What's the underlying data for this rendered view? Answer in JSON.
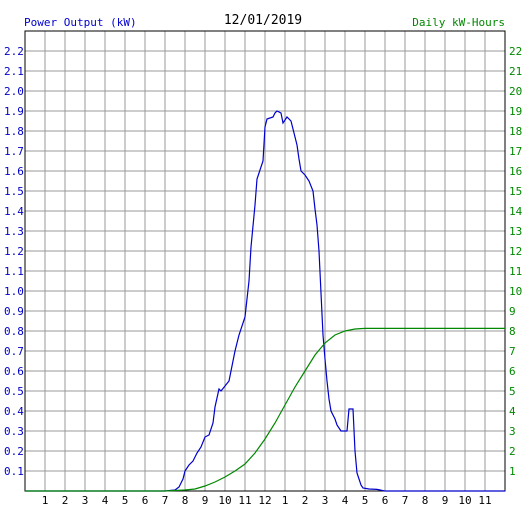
{
  "chart_data": {
    "type": "line",
    "date_title": "12/01/2019",
    "left_axis_label": "Power Output (kW)",
    "right_axis_label": "Daily kW-Hours",
    "x_ticks": [
      "1",
      "2",
      "3",
      "4",
      "5",
      "6",
      "7",
      "8",
      "9",
      "10",
      "11",
      "12",
      "1",
      "2",
      "3",
      "4",
      "5",
      "6",
      "7",
      "8",
      "9",
      "10",
      "11"
    ],
    "x_range": [
      0,
      24
    ],
    "y_left_range": [
      0,
      2.3
    ],
    "y_left_ticks": [
      "0.1",
      "0.2",
      "0.3",
      "0.4",
      "0.5",
      "0.6",
      "0.7",
      "0.8",
      "0.9",
      "1.0",
      "1.1",
      "1.2",
      "1.3",
      "1.4",
      "1.5",
      "1.6",
      "1.7",
      "1.8",
      "1.9",
      "2.0",
      "2.1",
      "2.2"
    ],
    "y_right_range": [
      0,
      23
    ],
    "y_right_ticks": [
      "1",
      "2",
      "3",
      "4",
      "5",
      "6",
      "7",
      "8",
      "9",
      "10",
      "11",
      "12",
      "13",
      "14",
      "15",
      "16",
      "17",
      "18",
      "19",
      "20",
      "21",
      "22"
    ],
    "grid": true,
    "series": [
      {
        "axis": "left",
        "color": "#0000cc",
        "points": [
          [
            0,
            0
          ],
          [
            6.5,
            0
          ],
          [
            7.0,
            0
          ],
          [
            7.5,
            0.005
          ],
          [
            7.7,
            0.02
          ],
          [
            7.9,
            0.06
          ],
          [
            8.0,
            0.1
          ],
          [
            8.2,
            0.13
          ],
          [
            8.4,
            0.15
          ],
          [
            8.6,
            0.19
          ],
          [
            8.8,
            0.22
          ],
          [
            9.0,
            0.27
          ],
          [
            9.2,
            0.28
          ],
          [
            9.4,
            0.34
          ],
          [
            9.5,
            0.42
          ],
          [
            9.7,
            0.51
          ],
          [
            9.8,
            0.5
          ],
          [
            10.2,
            0.55
          ],
          [
            10.3,
            0.6
          ],
          [
            10.5,
            0.7
          ],
          [
            10.7,
            0.78
          ],
          [
            11.0,
            0.87
          ],
          [
            11.2,
            1.05
          ],
          [
            11.3,
            1.22
          ],
          [
            11.5,
            1.43
          ],
          [
            11.6,
            1.56
          ],
          [
            11.9,
            1.65
          ],
          [
            12.0,
            1.82
          ],
          [
            12.1,
            1.86
          ],
          [
            12.4,
            1.87
          ],
          [
            12.5,
            1.89
          ],
          [
            12.6,
            1.9
          ],
          [
            12.8,
            1.89
          ],
          [
            12.9,
            1.84
          ],
          [
            13.1,
            1.87
          ],
          [
            13.3,
            1.85
          ],
          [
            13.4,
            1.81
          ],
          [
            13.6,
            1.73
          ],
          [
            13.7,
            1.66
          ],
          [
            13.8,
            1.6
          ],
          [
            14.0,
            1.58
          ],
          [
            14.2,
            1.55
          ],
          [
            14.4,
            1.5
          ],
          [
            14.5,
            1.41
          ],
          [
            14.6,
            1.33
          ],
          [
            14.7,
            1.2
          ],
          [
            14.9,
            0.78
          ],
          [
            15.0,
            0.66
          ],
          [
            15.1,
            0.55
          ],
          [
            15.2,
            0.46
          ],
          [
            15.3,
            0.4
          ],
          [
            15.5,
            0.36
          ],
          [
            15.6,
            0.33
          ],
          [
            15.8,
            0.3
          ],
          [
            16.1,
            0.3
          ],
          [
            16.2,
            0.41
          ],
          [
            16.4,
            0.41
          ],
          [
            16.5,
            0.2
          ],
          [
            16.6,
            0.09
          ],
          [
            16.8,
            0.03
          ],
          [
            16.9,
            0.015
          ],
          [
            17.2,
            0.01
          ],
          [
            17.6,
            0.008
          ],
          [
            18.0,
            0.0
          ],
          [
            24,
            0
          ]
        ]
      },
      {
        "axis": "right",
        "color": "#008800",
        "points": [
          [
            0,
            0
          ],
          [
            7.0,
            0
          ],
          [
            8.0,
            0.05
          ],
          [
            8.5,
            0.1
          ],
          [
            9.0,
            0.25
          ],
          [
            9.5,
            0.45
          ],
          [
            10.0,
            0.7
          ],
          [
            10.5,
            1.0
          ],
          [
            11.0,
            1.35
          ],
          [
            11.5,
            1.9
          ],
          [
            12.0,
            2.6
          ],
          [
            12.5,
            3.4
          ],
          [
            13.0,
            4.3
          ],
          [
            13.5,
            5.2
          ],
          [
            14.0,
            6.0
          ],
          [
            14.5,
            6.8
          ],
          [
            15.0,
            7.4
          ],
          [
            15.5,
            7.8
          ],
          [
            16.0,
            8.0
          ],
          [
            16.5,
            8.1
          ],
          [
            17.0,
            8.13
          ],
          [
            24,
            8.13
          ]
        ]
      }
    ]
  }
}
